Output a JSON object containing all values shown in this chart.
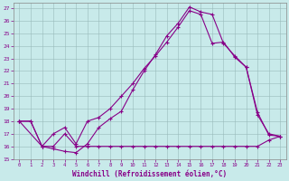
{
  "xlabel": "Windchill (Refroidissement éolien,°C)",
  "background_color": "#c8eaea",
  "line_color": "#880088",
  "grid_color": "#99bbbb",
  "xlim": [
    -0.5,
    23.5
  ],
  "ylim": [
    15,
    27.4
  ],
  "xticks": [
    0,
    1,
    2,
    3,
    4,
    5,
    6,
    7,
    8,
    9,
    10,
    11,
    12,
    13,
    14,
    15,
    16,
    17,
    18,
    19,
    20,
    21,
    22,
    23
  ],
  "yticks": [
    15,
    16,
    17,
    18,
    19,
    20,
    21,
    22,
    23,
    24,
    25,
    26,
    27
  ],
  "line1_x": [
    0,
    1,
    2,
    3,
    4,
    5,
    6,
    7,
    8,
    9,
    10,
    11,
    12,
    13,
    14,
    15,
    16,
    17,
    18,
    19,
    20,
    21,
    22,
    23
  ],
  "line1_y": [
    18,
    18,
    16,
    15.8,
    15.6,
    15.5,
    16.2,
    17.5,
    18.2,
    18.8,
    20.5,
    22.0,
    23.3,
    24.8,
    25.8,
    27.1,
    26.7,
    26.5,
    24.2,
    23.2,
    22.3,
    18.7,
    16.9,
    16.8
  ],
  "line2_x": [
    0,
    2,
    3,
    4,
    5,
    6,
    7,
    8,
    9,
    10,
    11,
    12,
    13,
    14,
    15,
    16,
    17,
    18,
    19,
    20,
    21,
    22,
    23
  ],
  "line2_y": [
    18,
    16,
    16,
    17,
    16,
    16,
    16,
    16,
    16,
    16,
    16,
    16,
    16,
    16,
    16,
    16,
    16,
    16,
    16,
    16,
    16,
    16.5,
    16.8
  ],
  "line3_x": [
    0,
    1,
    2,
    3,
    4,
    5,
    6,
    7,
    8,
    9,
    10,
    11,
    12,
    13,
    14,
    15,
    16,
    17,
    18,
    19,
    20,
    21,
    22,
    23
  ],
  "line3_y": [
    18,
    18,
    16,
    17.0,
    17.5,
    16.2,
    18.0,
    18.3,
    19.0,
    20.0,
    21.0,
    22.2,
    23.2,
    24.3,
    25.5,
    26.8,
    26.5,
    24.2,
    24.3,
    23.1,
    22.3,
    18.5,
    17.0,
    16.8
  ]
}
